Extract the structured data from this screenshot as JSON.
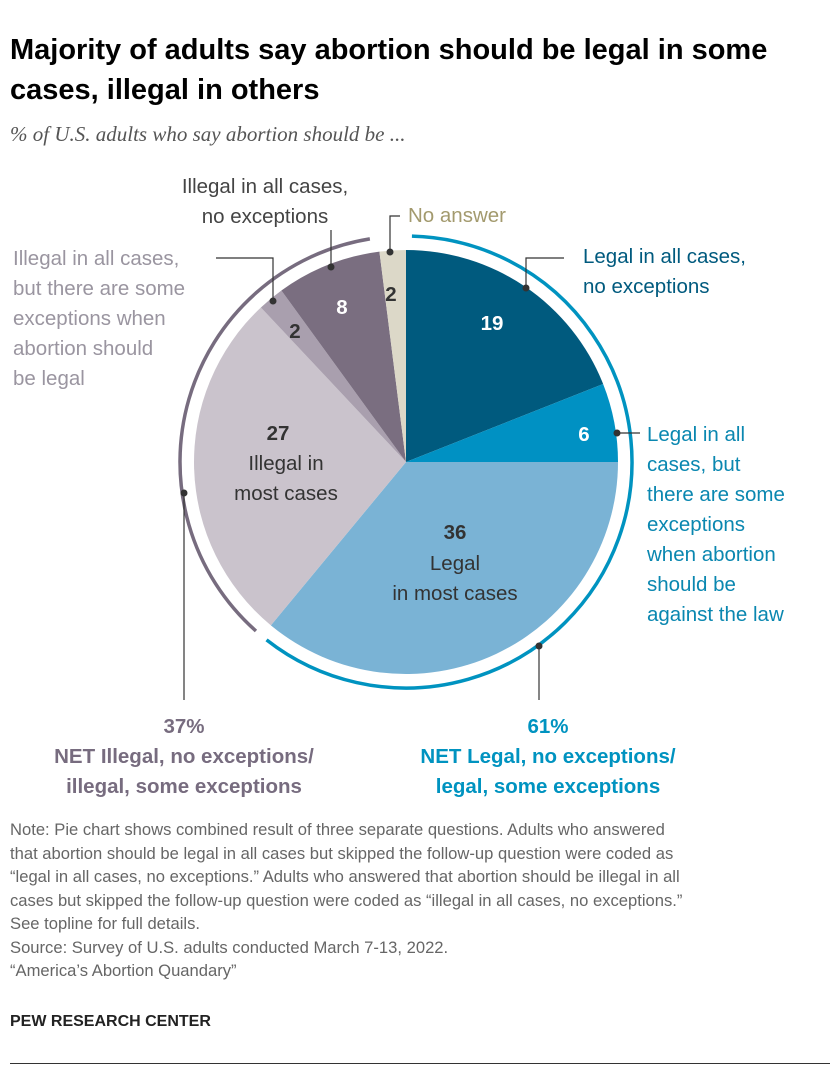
{
  "title": "Majority of adults say abortion should be legal in some cases, illegal in others",
  "subtitle": "% of U.S. adults who say abortion should be ...",
  "chart_data": {
    "type": "pie",
    "title": "Majority of adults say abortion should be legal in some cases, illegal in others",
    "start": "top",
    "direction": "clockwise",
    "slices": [
      {
        "label": "Legal in all cases, no exceptions",
        "value": 19,
        "color": "#005a7e"
      },
      {
        "label": "Legal in all cases, but there are some exceptions when abortion should be against the law",
        "value": 6,
        "color": "#0091c3"
      },
      {
        "label": "Legal in most cases",
        "value": 36,
        "color": "#7ab3d5"
      },
      {
        "label": "Illegal in most cases",
        "value": 27,
        "color": "#cac3cc"
      },
      {
        "label": "Illegal in all cases, but there are some exceptions when abortion should be legal",
        "value": 2,
        "color": "#a99fae"
      },
      {
        "label": "Illegal in all cases, no exceptions",
        "value": 8,
        "color": "#7a6e80"
      },
      {
        "label": "No answer",
        "value": 2,
        "color": "#dcd8c8"
      }
    ],
    "data_labels": [
      "19",
      "6",
      "36",
      "27",
      "2",
      "8",
      "2"
    ],
    "nets": [
      {
        "value": "61%",
        "label": "NET Legal, no exceptions/ legal, some exceptions",
        "color": "#0093c0"
      },
      {
        "value": "37%",
        "label": "NET Illegal, no exceptions/ illegal, some exceptions",
        "color": "#776c7f"
      }
    ]
  },
  "labels": {
    "legal_all_no": [
      "Legal in all cases,",
      "no exceptions"
    ],
    "legal_all_some": [
      "Legal in all",
      "cases, but",
      "there are some",
      "exceptions",
      "when abortion",
      "should be",
      "against the law"
    ],
    "legal_most": "Legal",
    "legal_most2": "in most cases",
    "illegal_most": "Illegal in",
    "illegal_most2": "most cases",
    "illegal_all_some": [
      "Illegal in all cases,",
      "but there are some",
      "exceptions when",
      "abortion should",
      "be legal"
    ],
    "illegal_all_no": [
      "Illegal in all cases,",
      "no exceptions"
    ],
    "no_answer": "No answer",
    "net_illegal": [
      "37%",
      "NET Illegal, no exceptions/",
      "illegal, some exceptions"
    ],
    "net_legal": [
      "61%",
      "NET Legal, no exceptions/",
      "legal, some exceptions"
    ]
  },
  "notes": [
    "Note: Pie chart shows combined result of three separate questions. Adults who answered",
    "that abortion should be legal in all cases but skipped the follow-up question were coded as",
    "“legal in all cases, no exceptions.” Adults who answered that abortion should be illegal in all",
    "cases but skipped the follow-up question were coded as “illegal in all cases, no exceptions.”",
    "See topline for full details.",
    "Source: Survey of U.S. adults conducted March 7-13, 2022.",
    "“America’s Abortion Quandary”"
  ],
  "footer": "PEW RESEARCH CENTER"
}
